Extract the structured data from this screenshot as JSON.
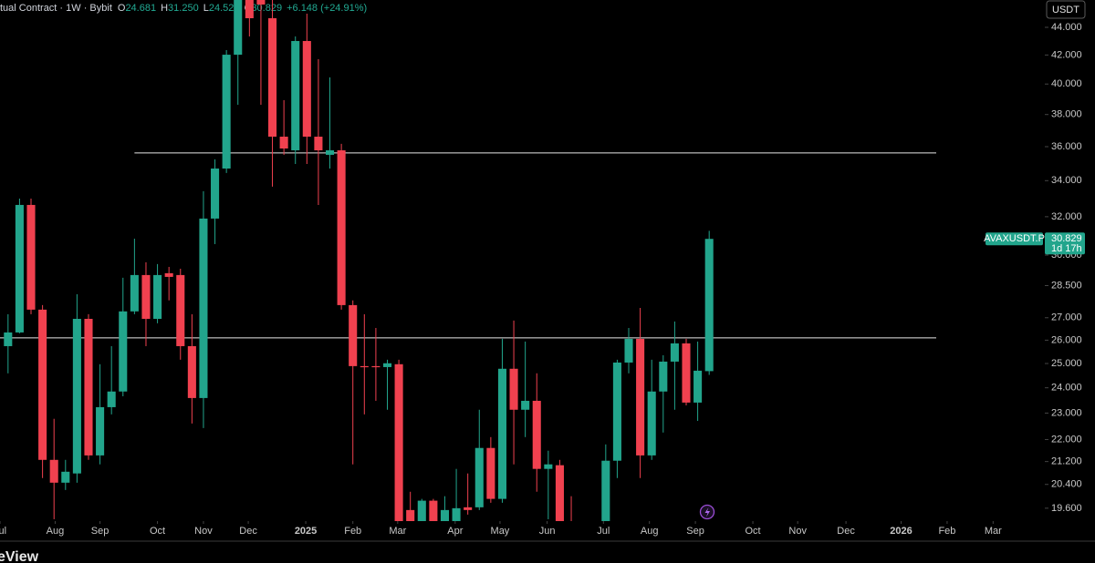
{
  "header": {
    "symbol": "tual Contract · 1W · Bybit",
    "ohlc": [
      {
        "key": "O",
        "value": "24.681"
      },
      {
        "key": "H",
        "value": "31.250"
      },
      {
        "key": "L",
        "value": "24.527"
      },
      {
        "key": "C",
        "value": "30.829"
      }
    ],
    "change": "+6.148 (+24.91%)"
  },
  "currency": "USDT",
  "footer": "eView",
  "chart_data": {
    "type": "candlestick",
    "log_scale": true,
    "ylim": [
      19.18,
      46.07
    ],
    "yticks": [
      {
        "value": 44,
        "label": "44.000"
      },
      {
        "value": 42,
        "label": "42.000"
      },
      {
        "value": 40,
        "label": "40.000"
      },
      {
        "value": 38,
        "label": "38.000"
      },
      {
        "value": 36,
        "label": "36.000"
      },
      {
        "value": 34,
        "label": "34.000"
      },
      {
        "value": 32,
        "label": "32.000"
      },
      {
        "value": 30,
        "label": "30.000"
      },
      {
        "value": 28.5,
        "label": "28.500"
      },
      {
        "value": 27,
        "label": "27.000"
      },
      {
        "value": 26,
        "label": "26.000"
      },
      {
        "value": 25,
        "label": "25.000"
      },
      {
        "value": 24,
        "label": "24.000"
      },
      {
        "value": 23,
        "label": "23.000"
      },
      {
        "value": 22,
        "label": "22.000"
      },
      {
        "value": 21.2,
        "label": "21.200"
      },
      {
        "value": 20.4,
        "label": "20.400"
      },
      {
        "value": 19.6,
        "label": "19.600"
      }
    ],
    "xlim": [
      -0.7,
      90.2
    ],
    "xticks": [
      {
        "value": -0.7,
        "label": "Jul"
      },
      {
        "value": 4.1,
        "label": "Aug"
      },
      {
        "value": 8.0,
        "label": "Sep"
      },
      {
        "value": 13.0,
        "label": "Oct"
      },
      {
        "value": 17.0,
        "label": "Nov"
      },
      {
        "value": 20.9,
        "label": "Dec"
      },
      {
        "value": 25.9,
        "label": "2025",
        "bold": true
      },
      {
        "value": 30.0,
        "label": "Feb"
      },
      {
        "value": 33.9,
        "label": "Mar"
      },
      {
        "value": 38.9,
        "label": "Apr"
      },
      {
        "value": 42.8,
        "label": "May"
      },
      {
        "value": 46.9,
        "label": "Jun"
      },
      {
        "value": 51.8,
        "label": "Jul"
      },
      {
        "value": 55.8,
        "label": "Aug"
      },
      {
        "value": 59.8,
        "label": "Sep"
      },
      {
        "value": 64.8,
        "label": "Oct"
      },
      {
        "value": 68.7,
        "label": "Nov"
      },
      {
        "value": 72.9,
        "label": "Dec"
      },
      {
        "value": 77.7,
        "label": "2026",
        "bold": true
      },
      {
        "value": 81.7,
        "label": "Feb"
      },
      {
        "value": 85.7,
        "label": "Mar"
      }
    ],
    "open": [
      25.74,
      26.34,
      32.64,
      27.37,
      21.26,
      20.46,
      20.78,
      26.95,
      21.42,
      23.23,
      23.85,
      27.29,
      29.01,
      26.95,
      29.1,
      29.01,
      25.74,
      23.59,
      31.9,
      34.7,
      42.02,
      47.14,
      46.42,
      44.68,
      36.61,
      35.78,
      43.0,
      36.61,
      35.51,
      35.78,
      27.58,
      24.89,
      24.89,
      24.85,
      24.97,
      19.54,
      19.18,
      19.85,
      18.95,
      19.18,
      19.63,
      19.63,
      21.69,
      19.91,
      24.78,
      23.13,
      23.48,
      20.94,
      21.07,
      18.66,
      null,
      null,
      18.66,
      21.23,
      25.04,
      26.06,
      21.42,
      23.85,
      25.08,
      25.86,
      23.41,
      24.681
    ],
    "high": [
      27.16,
      32.99,
      32.99,
      27.58,
      22.78,
      21.26,
      28.09,
      27.16,
      24.97,
      25.74,
      28.88,
      30.84,
      29.64,
      29.55,
      29.41,
      29.32,
      27.16,
      33.4,
      35.24,
      42.35,
      48.24,
      48.24,
      47.87,
      46.78,
      38.93,
      43.33,
      45.02,
      41.7,
      40.45,
      36.17,
      27.8,
      27.16,
      26.54,
      25.16,
      25.16,
      20.15,
      19.91,
      19.91,
      20.0,
      20.94,
      20.78,
      23.13,
      22.09,
      26.06,
      26.87,
      25.94,
      24.59,
      21.59,
      21.26,
      20.0,
      null,
      null,
      21.82,
      25.16,
      26.54,
      27.45,
      25.16,
      25.35,
      26.83,
      26.06,
      25.94,
      31.25
    ],
    "low": [
      24.59,
      26.3,
      27.16,
      20.62,
      19.24,
      20.21,
      20.46,
      21.26,
      21.1,
      22.95,
      23.66,
      27.16,
      25.74,
      26.75,
      27.8,
      25.16,
      22.6,
      22.43,
      30.56,
      34.44,
      38.63,
      43.33,
      38.63,
      33.66,
      35.51,
      34.97,
      34.97,
      32.64,
      34.7,
      27.37,
      21.1,
      22.95,
      23.48,
      23.13,
      18.66,
      18.38,
      18.95,
      18.95,
      18.66,
      18.95,
      19.39,
      19.54,
      19.78,
      19.78,
      21.1,
      22.09,
      20.15,
      19.24,
      18.38,
      18.1,
      null,
      null,
      18.38,
      20.62,
      24.59,
      20.62,
      21.26,
      22.26,
      23.13,
      23.3,
      22.7,
      24.527
    ],
    "close": [
      26.34,
      32.64,
      27.37,
      21.26,
      20.46,
      20.84,
      26.95,
      21.42,
      23.23,
      23.85,
      27.29,
      29.01,
      26.95,
      29.01,
      28.92,
      25.74,
      23.59,
      31.9,
      34.7,
      42.02,
      46.78,
      44.68,
      45.72,
      36.61,
      35.89,
      43.0,
      36.61,
      35.78,
      35.78,
      27.58,
      24.89,
      24.85,
      24.85,
      25.01,
      18.81,
      18.66,
      19.85,
      19.18,
      19.54,
      19.6,
      19.54,
      21.69,
      19.91,
      24.78,
      23.13,
      23.48,
      20.94,
      21.1,
      18.66,
      18.38,
      null,
      null,
      21.23,
      25.04,
      26.06,
      21.42,
      23.85,
      25.08,
      25.86,
      23.41,
      24.7,
      30.829
    ],
    "up_color": "#22a58c",
    "down_color": "#f0414f",
    "hlines": [
      {
        "price": 35.62,
        "from": 11
      },
      {
        "price": 26.1,
        "from": -0.7
      }
    ],
    "hline_color": "#e6e6e6",
    "last_price": {
      "symbol": "AVAXUSDT.P",
      "value": 30.829,
      "countdown": "1d 17h"
    }
  }
}
